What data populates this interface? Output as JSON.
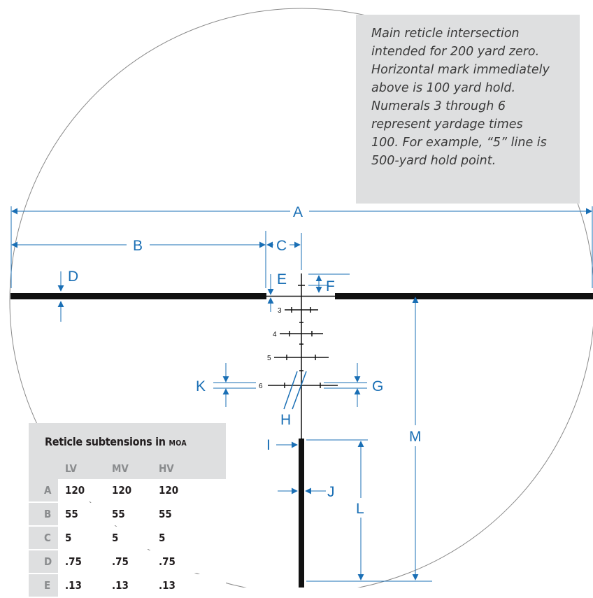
{
  "note": {
    "lines": [
      "Main reticle intersection",
      "intended for 200 yard zero.",
      "Horizontal mark immediately",
      "above is 100 yard hold.",
      "Numerals 3 through 6",
      "represent yardage times",
      "100. For example, “5” line is",
      "500-yard hold point."
    ]
  },
  "labels": {
    "A": "A",
    "B": "B",
    "C": "C",
    "D": "D",
    "E": "E",
    "F": "F",
    "G": "G",
    "H": "H",
    "I": "I",
    "J": "J",
    "K": "K",
    "L": "L",
    "M": "M"
  },
  "numerals": [
    "3",
    "4",
    "5",
    "6"
  ],
  "table": {
    "title": "Reticle subtensions in",
    "unit": "moa",
    "columns": [
      "LV",
      "MV",
      "HV"
    ],
    "rows": [
      {
        "label": "A",
        "values": [
          "120",
          "120",
          "120"
        ]
      },
      {
        "label": "B",
        "values": [
          "55",
          "55",
          "55"
        ]
      },
      {
        "label": "C",
        "values": [
          "5",
          "5",
          "5"
        ]
      },
      {
        "label": "D",
        "values": [
          ".75",
          ".75",
          ".75"
        ]
      },
      {
        "label": "E",
        "values": [
          ".13",
          ".13",
          ".13"
        ]
      }
    ]
  },
  "colors": {
    "dimension": "#1a6fb5",
    "reticle": "#111111",
    "circle": "#8a8a8a",
    "panel": "#dedfe0"
  }
}
